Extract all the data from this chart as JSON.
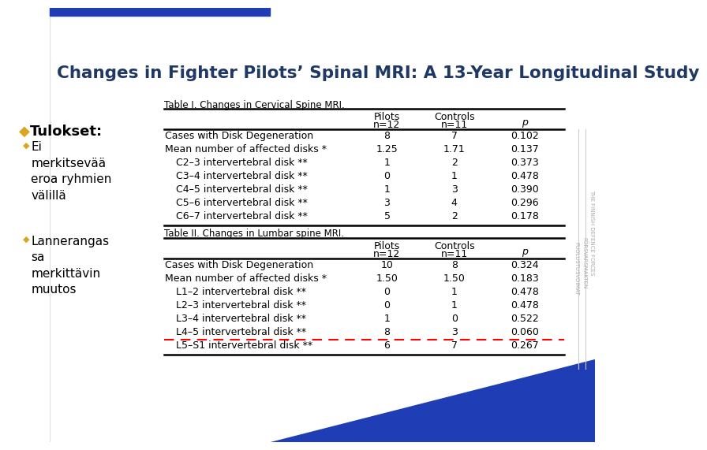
{
  "title": "Changes in Fighter Pilots’ Spinal MRI: A 13-Year Longitudinal Study",
  "title_color": "#1F3864",
  "title_fontsize": 15.5,
  "left_bullet_title": "Tulokset:",
  "left_bullets": [
    "Ei\nmerkitsevää\neroa ryhmien\nvälillä",
    "Lannerangas\nsa\nmerkittävin\nmuutos"
  ],
  "table1_title": "Table I. Changes in Cervical Spine MRI.",
  "table2_title": "Table II. Changes in Lumbar spine MRI.",
  "table1_rows": [
    [
      "Cases with Disk Degeneration",
      "8",
      "7",
      "0.102"
    ],
    [
      "Mean number of affected disks *",
      "1.25",
      "1.71",
      "0.137"
    ],
    [
      "C2–3 intervertebral disk **",
      "1",
      "2",
      "0.373"
    ],
    [
      "C3–4 intervertebral disk **",
      "0",
      "1",
      "0.478"
    ],
    [
      "C4–5 intervertebral disk **",
      "1",
      "3",
      "0.390"
    ],
    [
      "C5–6 intervertebral disk **",
      "3",
      "4",
      "0.296"
    ],
    [
      "C6–7 intervertebral disk **",
      "5",
      "2",
      "0.178"
    ]
  ],
  "table2_rows": [
    [
      "Cases with Disk Degeneration",
      "10",
      "8",
      "0.324"
    ],
    [
      "Mean number of affected disks *",
      "1.50",
      "1.50",
      "0.183"
    ],
    [
      "L1–2 intervertebral disk **",
      "0",
      "1",
      "0.478"
    ],
    [
      "L2–3 intervertebral disk **",
      "0",
      "1",
      "0.478"
    ],
    [
      "L3–4 intervertebral disk **",
      "1",
      "0",
      "0.522"
    ],
    [
      "L4–5 intervertebral disk **",
      "8",
      "3",
      "0.060"
    ],
    [
      "L5–S1 intervertebral disk **",
      "6",
      "7",
      "0.267"
    ]
  ],
  "bg_color": "#FFFFFF",
  "top_bar_color": "#1F3DB5",
  "bottom_tri_color": "#1F3DB5",
  "bullet_diamond_color": "#DAA520",
  "table_line_color": "#000000",
  "dashed_row_index": 5,
  "dashed_color": "#FF0000",
  "sidebar_text_color": "#AAAAAA",
  "sidebar_line_color": "#CCCCCC"
}
